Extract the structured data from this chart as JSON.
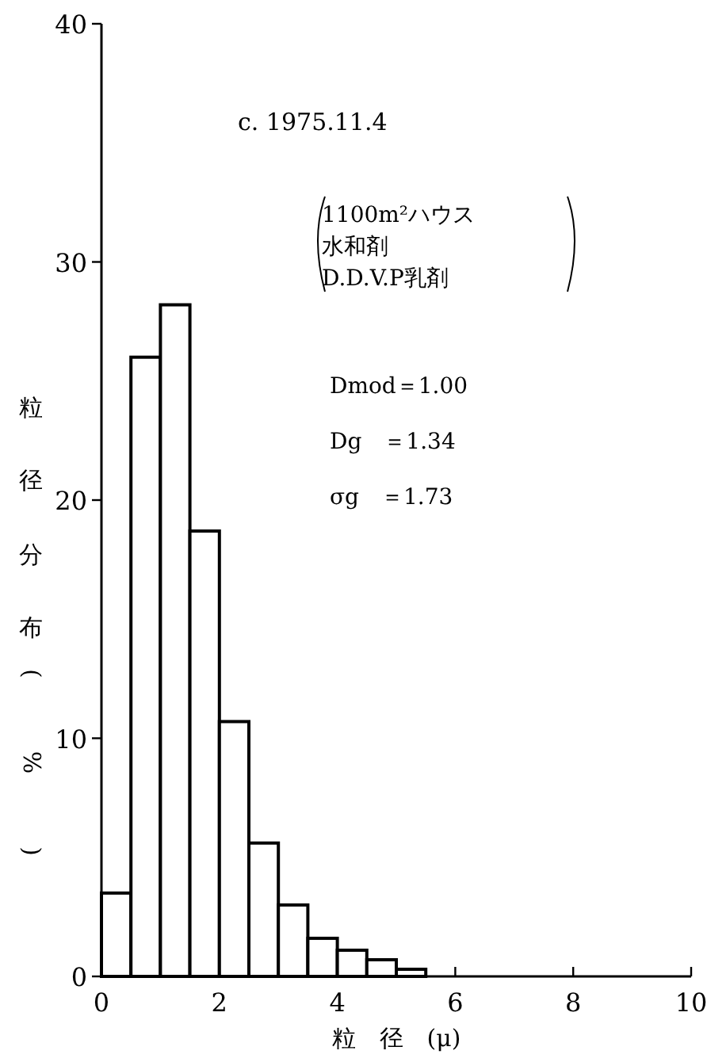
{
  "chart_data": {
    "type": "histogram",
    "title": "c.  1975.11.4",
    "xlabel": "粒　径　(μ)",
    "ylabel": "粒径分布(%)",
    "annotations": [
      "1100m²ハウス",
      "水和剤",
      "D.D.V.P乳剤",
      "Dmod＝1.00",
      "Dg　＝1.34",
      "σg　＝1.73"
    ],
    "bins": [
      0,
      0.5,
      1,
      1.5,
      2,
      2.5,
      3,
      3.5,
      4,
      4.5,
      5,
      5.5
    ],
    "values": [
      3.5,
      26.0,
      28.2,
      18.7,
      10.7,
      5.6,
      3.0,
      1.6,
      1.1,
      0.7,
      0.3
    ],
    "xlim": [
      0,
      10
    ],
    "ylim": [
      0,
      40
    ],
    "xticks": [
      0,
      2,
      4,
      6,
      8,
      10
    ],
    "yticks": [
      0,
      10,
      20,
      30,
      40
    ]
  }
}
